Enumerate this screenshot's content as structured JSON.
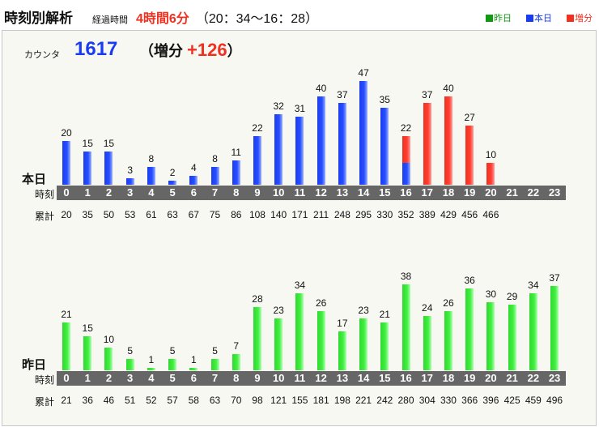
{
  "header": {
    "title": "時刻別解析",
    "elapsed_label": "経過時間",
    "elapsed": "4時間6分",
    "range": "（20：34〜16：28）",
    "legend": [
      {
        "label": "昨日",
        "color": "#119911"
      },
      {
        "label": "本日",
        "color": "#1a3cf0"
      },
      {
        "label": "増分",
        "color": "#f03020"
      }
    ]
  },
  "counter": {
    "label": "カウンタ",
    "value": "1617",
    "increment_prefix": "（増分",
    "increment": "+126",
    "increment_suffix": "）"
  },
  "row_labels": {
    "hour": "時刻",
    "cumulative": "累計"
  },
  "hours": [
    "0",
    "1",
    "2",
    "3",
    "4",
    "5",
    "6",
    "7",
    "8",
    "9",
    "10",
    "11",
    "12",
    "13",
    "14",
    "15",
    "16",
    "17",
    "18",
    "19",
    "20",
    "21",
    "22",
    "23"
  ],
  "today": {
    "label": "本日",
    "values": [
      20,
      15,
      15,
      3,
      8,
      2,
      4,
      8,
      11,
      22,
      32,
      31,
      40,
      37,
      47,
      35,
      22,
      37,
      40,
      27,
      10,
      null,
      null,
      null
    ],
    "increment": [
      0,
      0,
      0,
      0,
      0,
      0,
      0,
      0,
      0,
      0,
      0,
      0,
      0,
      0,
      0,
      0,
      12,
      37,
      40,
      27,
      10,
      0,
      0,
      0
    ],
    "cumulative": [
      "20",
      "35",
      "50",
      "53",
      "61",
      "63",
      "67",
      "75",
      "86",
      "108",
      "140",
      "171",
      "211",
      "248",
      "295",
      "330",
      "352",
      "389",
      "429",
      "456",
      "466",
      "",
      "",
      ""
    ]
  },
  "yesterday": {
    "label": "昨日",
    "values": [
      21,
      15,
      10,
      5,
      1,
      5,
      1,
      5,
      7,
      28,
      23,
      34,
      26,
      17,
      23,
      21,
      38,
      24,
      26,
      36,
      30,
      29,
      34,
      37
    ],
    "cumulative": [
      "21",
      "36",
      "46",
      "51",
      "52",
      "57",
      "58",
      "63",
      "70",
      "98",
      "121",
      "155",
      "181",
      "198",
      "221",
      "242",
      "280",
      "304",
      "330",
      "366",
      "396",
      "425",
      "459",
      "496"
    ]
  }
}
